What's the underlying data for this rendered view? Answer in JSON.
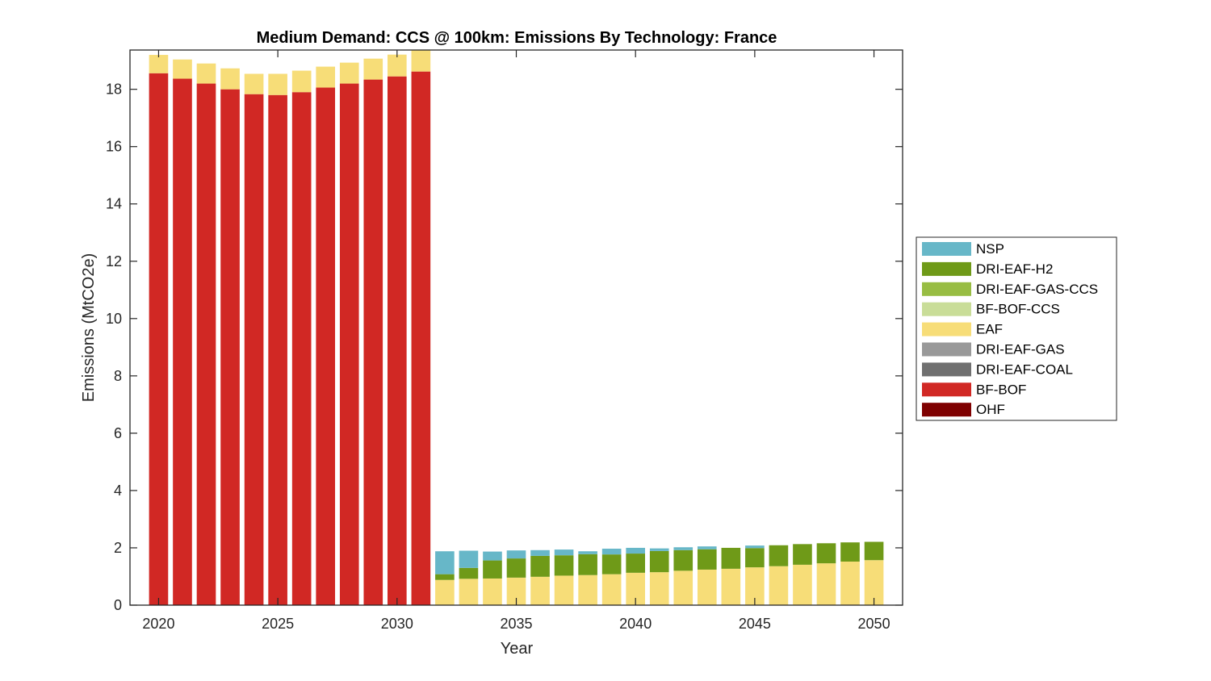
{
  "chart_data": {
    "type": "bar",
    "stacked": true,
    "title": "Medium Demand: CCS @ 100km: Emissions By Technology: France",
    "xlabel": "Year",
    "ylabel": "Emissions (MtCO2e)",
    "xlim": [
      2018.8,
      2051.2
    ],
    "ylim": [
      0,
      19.37
    ],
    "xticks": [
      2020,
      2025,
      2030,
      2035,
      2040,
      2045,
      2050
    ],
    "xtick_labels": [
      "2020",
      "2025",
      "2030",
      "2035",
      "2040",
      "2045",
      "2050"
    ],
    "yticks": [
      0,
      2,
      4,
      6,
      8,
      10,
      12,
      14,
      16,
      18
    ],
    "ytick_labels": [
      "0",
      "2",
      "4",
      "6",
      "8",
      "10",
      "12",
      "14",
      "16",
      "18"
    ],
    "legend_position": "right-outside",
    "categories": [
      2020,
      2021,
      2022,
      2023,
      2024,
      2025,
      2026,
      2027,
      2028,
      2029,
      2030,
      2031,
      2032,
      2033,
      2034,
      2035,
      2036,
      2037,
      2038,
      2039,
      2040,
      2041,
      2042,
      2043,
      2044,
      2045,
      2046,
      2047,
      2048,
      2049,
      2050
    ],
    "series": [
      {
        "name": "OHF",
        "color": "#7f0000",
        "values": [
          0,
          0,
          0,
          0,
          0,
          0,
          0,
          0,
          0,
          0,
          0,
          0,
          0,
          0,
          0,
          0,
          0,
          0,
          0,
          0,
          0,
          0,
          0,
          0,
          0,
          0,
          0,
          0,
          0,
          0,
          0
        ]
      },
      {
        "name": "BF-BOF",
        "color": "#d12824",
        "values": [
          18.56,
          18.37,
          18.2,
          18.0,
          17.83,
          17.8,
          17.9,
          18.06,
          18.2,
          18.34,
          18.45,
          18.62,
          0,
          0,
          0,
          0,
          0,
          0,
          0,
          0,
          0,
          0,
          0,
          0,
          0,
          0,
          0,
          0,
          0,
          0,
          0
        ]
      },
      {
        "name": "DRI-EAF-COAL",
        "color": "#707070",
        "values": [
          0,
          0,
          0,
          0,
          0,
          0,
          0,
          0,
          0,
          0,
          0,
          0,
          0,
          0,
          0,
          0,
          0,
          0,
          0,
          0,
          0,
          0,
          0,
          0,
          0,
          0,
          0,
          0,
          0,
          0,
          0
        ]
      },
      {
        "name": "DRI-EAF-GAS",
        "color": "#999999",
        "values": [
          0,
          0,
          0,
          0,
          0,
          0,
          0,
          0,
          0,
          0,
          0,
          0,
          0,
          0,
          0,
          0,
          0,
          0,
          0,
          0,
          0,
          0,
          0,
          0,
          0,
          0,
          0,
          0,
          0,
          0,
          0
        ]
      },
      {
        "name": "EAF",
        "color": "#f7dd78",
        "values": [
          0.64,
          0.67,
          0.7,
          0.73,
          0.71,
          0.74,
          0.75,
          0.73,
          0.73,
          0.73,
          0.76,
          0.78,
          0.88,
          0.92,
          0.93,
          0.96,
          0.99,
          1.03,
          1.05,
          1.08,
          1.13,
          1.15,
          1.2,
          1.24,
          1.27,
          1.32,
          1.36,
          1.41,
          1.46,
          1.52,
          1.57
        ]
      },
      {
        "name": "BF-BOF-CCS",
        "color": "#c9dd98",
        "values": [
          0,
          0,
          0,
          0,
          0,
          0,
          0,
          0,
          0,
          0,
          0,
          0,
          0,
          0,
          0,
          0,
          0,
          0,
          0,
          0,
          0,
          0,
          0,
          0,
          0,
          0,
          0,
          0,
          0,
          0,
          0
        ]
      },
      {
        "name": "DRI-EAF-GAS-CCS",
        "color": "#98bd43",
        "values": [
          0,
          0,
          0,
          0,
          0,
          0,
          0,
          0,
          0,
          0,
          0,
          0,
          0,
          0,
          0,
          0,
          0,
          0,
          0,
          0,
          0,
          0,
          0,
          0,
          0,
          0,
          0,
          0,
          0,
          0,
          0
        ]
      },
      {
        "name": "DRI-EAF-H2",
        "color": "#6f9a18",
        "values": [
          0,
          0,
          0,
          0,
          0,
          0,
          0,
          0,
          0,
          0,
          0,
          0,
          0.2,
          0.38,
          0.63,
          0.67,
          0.73,
          0.71,
          0.73,
          0.69,
          0.67,
          0.74,
          0.72,
          0.71,
          0.73,
          0.67,
          0.73,
          0.72,
          0.7,
          0.67,
          0.64
        ]
      },
      {
        "name": "NSP",
        "color": "#67b7c8",
        "values": [
          0,
          0,
          0,
          0,
          0,
          0,
          0,
          0,
          0,
          0,
          0,
          0,
          0.8,
          0.6,
          0.31,
          0.28,
          0.2,
          0.2,
          0.1,
          0.2,
          0.2,
          0.09,
          0.1,
          0.1,
          0,
          0.09,
          0,
          0,
          0,
          0,
          0
        ]
      }
    ],
    "legend_order": [
      "NSP",
      "DRI-EAF-H2",
      "DRI-EAF-GAS-CCS",
      "BF-BOF-CCS",
      "EAF",
      "DRI-EAF-GAS",
      "DRI-EAF-COAL",
      "BF-BOF",
      "OHF"
    ]
  }
}
